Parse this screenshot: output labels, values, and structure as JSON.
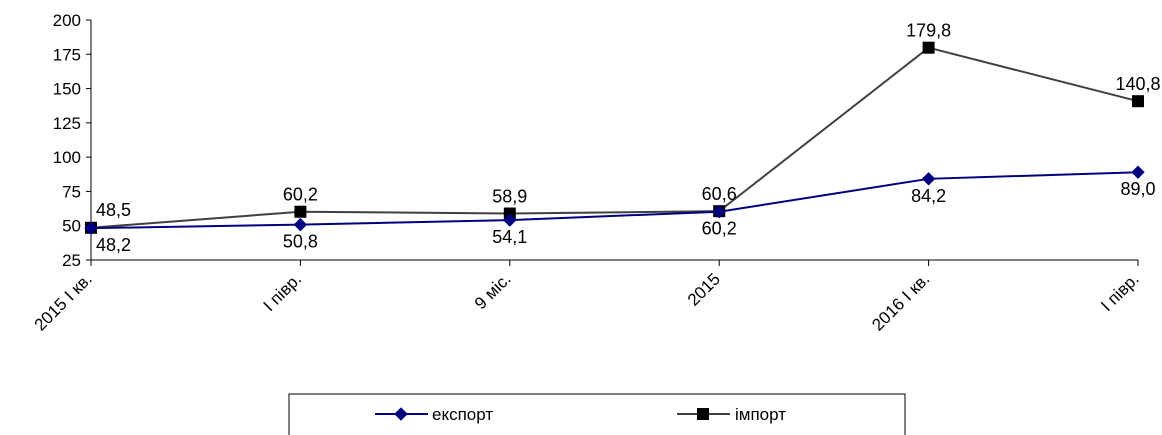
{
  "chart_data": {
    "type": "line",
    "categories": [
      "2015 I кв.",
      "I півр.",
      "9 міс.",
      "2015",
      "2016 I кв.",
      "I півр."
    ],
    "series": [
      {
        "name": "експорт",
        "values": [
          48.2,
          50.8,
          54.1,
          60.2,
          84.2,
          89.0
        ],
        "labels": [
          "48,2",
          "50,8",
          "54,1",
          "60,2",
          "84,2",
          "89,0"
        ],
        "color": "#000080",
        "marker": "diamond"
      },
      {
        "name": "імпорт",
        "values": [
          48.5,
          60.2,
          58.9,
          60.6,
          179.8,
          140.8
        ],
        "labels": [
          "48,5",
          "60,2",
          "58,9",
          "60,6",
          "179,8",
          "140,8"
        ],
        "color": "#404040",
        "marker": "square"
      }
    ],
    "ylim": [
      25,
      200
    ],
    "yticks": [
      25,
      50,
      75,
      100,
      125,
      150,
      175,
      200
    ],
    "grid": false,
    "legend_position": "bottom"
  }
}
